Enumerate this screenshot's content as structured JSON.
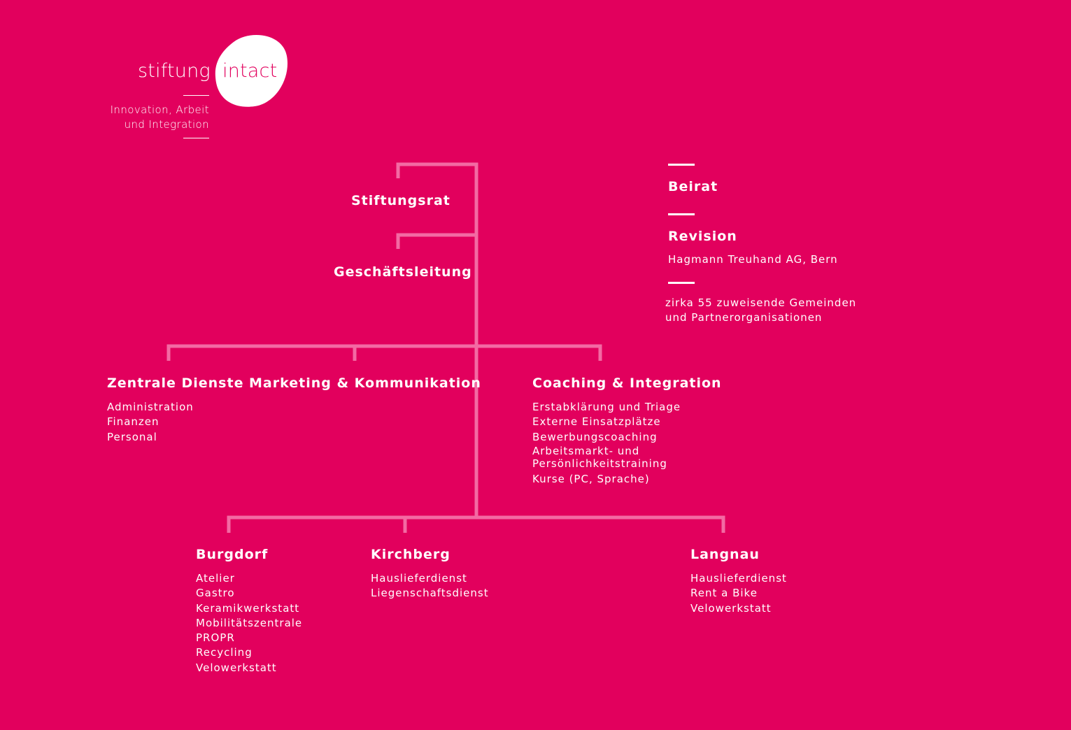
{
  "logo": {
    "word_left": "stiftung",
    "word_right": "intact",
    "tagline": [
      "Innovation, Arbeit",
      "und Integration"
    ]
  },
  "colors": {
    "background": "#e2005d",
    "connector_lines": "#f36aa3",
    "text": "#ffffff"
  },
  "top": {
    "board": "Stiftungsrat",
    "management": "Geschäftsleitung"
  },
  "side": {
    "advisory": "Beirat",
    "audit": {
      "title": "Revision",
      "detail": "Hagmann Treuhand AG, Bern"
    },
    "partners": [
      "zirka 55 zuweisende Gemeinden",
      "und Partnerorganisationen"
    ]
  },
  "departments": [
    {
      "title": "Zentrale Dienste",
      "items": [
        "Administration",
        "Finanzen",
        "Personal"
      ]
    },
    {
      "title": "Marketing & Kommunikation",
      "items": []
    },
    {
      "title": "Coaching & Integration",
      "items": [
        "Erstabklärung und Triage",
        "Externe Einsatzplätze",
        "Bewerbungscoaching",
        "Arbeitsmarkt- und Persönlichkeitstraining",
        "Kurse (PC, Sprache)"
      ]
    }
  ],
  "locations": [
    {
      "title": "Burgdorf",
      "items": [
        "Atelier",
        "Gastro",
        "Keramikwerkstatt",
        "Mobilitätszentrale",
        "PROPR",
        "Recycling",
        "Velowerkstatt"
      ]
    },
    {
      "title": "Kirchberg",
      "items": [
        "Hauslieferdienst",
        "Liegenschaftsdienst"
      ]
    },
    {
      "title": "Langnau",
      "items": [
        "Hauslieferdienst",
        "Rent a Bike",
        "Velowerkstatt"
      ]
    }
  ]
}
